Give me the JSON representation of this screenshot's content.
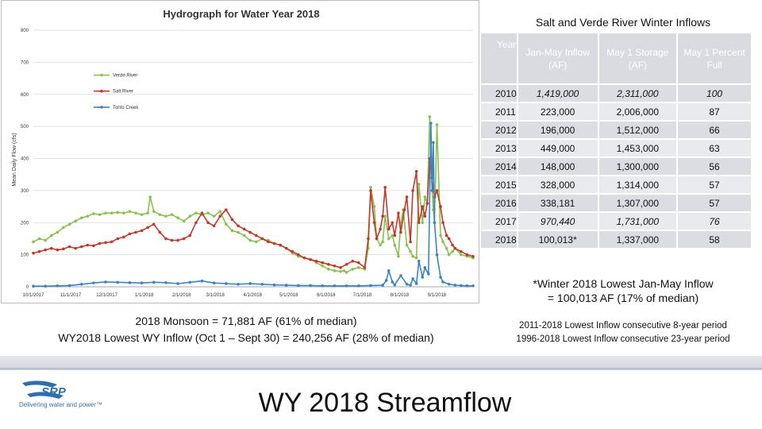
{
  "table": {
    "title": "Salt and Verde River Winter Inflows",
    "headers": [
      "Year",
      "Jan-May Inflow (AF)",
      "May 1 Storage (AF)",
      "May 1 Percent Full"
    ],
    "rows": [
      {
        "year": "2010",
        "inflow": "1,419,000",
        "storage": "2,311,000",
        "pct": "100",
        "italic": true
      },
      {
        "year": "2011",
        "inflow": "223,000",
        "storage": "2,006,000",
        "pct": "87",
        "italic": false
      },
      {
        "year": "2012",
        "inflow": "196,000",
        "storage": "1,512,000",
        "pct": "66",
        "italic": false
      },
      {
        "year": "2013",
        "inflow": "449,000",
        "storage": "1,453,000",
        "pct": "63",
        "italic": false
      },
      {
        "year": "2014",
        "inflow": "148,000",
        "storage": "1,300,000",
        "pct": "56",
        "italic": false
      },
      {
        "year": "2015",
        "inflow": "328,000",
        "storage": "1,314,000",
        "pct": "57",
        "italic": false
      },
      {
        "year": "2016",
        "inflow": "338,181",
        "storage": "1,307,000",
        "pct": "57",
        "italic": false
      },
      {
        "year": "2017",
        "inflow": "970,440",
        "storage": "1,731,000",
        "pct": "76",
        "italic": true
      },
      {
        "year": "2018",
        "inflow": "100,013*",
        "storage": "1,337,000",
        "pct": "58",
        "italic": false
      }
    ]
  },
  "notes": {
    "winter_line1": "*Winter 2018 Lowest Jan-May Inflow",
    "winter_line2": "= 100,013 AF (17% of median)",
    "consecutive_line1": "2011-2018 Lowest Inflow consecutive 8-year period",
    "consecutive_line2": "1996-2018 Lowest Inflow  consecutive 23-year period",
    "monsoon_line1": "2018 Monsoon = 71,881 AF (61% of median)",
    "monsoon_line2": "WY2018 Lowest WY Inflow (Oct 1 – Sept 30) = 240,256 AF (28% of median)"
  },
  "slide_title": "WY 2018 Streamflow",
  "logo": {
    "text": "SRP",
    "tagline": "Delivering water and power™"
  },
  "colors": {
    "verde": "#8cc04f",
    "salt": "#c0392b",
    "tonto": "#3b83c4",
    "grid": "#d9d9d9",
    "logo_blue": "#2f6fb0"
  },
  "chart_data": {
    "type": "line",
    "title": "Hydrograph for Water Year 2018",
    "xlabel": "",
    "ylabel": "Mean Daily Flow (cfs)",
    "ylim": [
      0,
      800
    ],
    "yticks": [
      0,
      100,
      200,
      300,
      400,
      500,
      600,
      700,
      800
    ],
    "xlim": [
      0,
      365
    ],
    "xticks": [
      {
        "day": 0,
        "label": "10/1/2017"
      },
      {
        "day": 31,
        "label": "11/1/2017"
      },
      {
        "day": 61,
        "label": "12/1/2017"
      },
      {
        "day": 92,
        "label": "1/1/2018"
      },
      {
        "day": 123,
        "label": "2/1/2018"
      },
      {
        "day": 151,
        "label": "3/1/2018"
      },
      {
        "day": 182,
        "label": "4/1/2018"
      },
      {
        "day": 212,
        "label": "5/1/2018"
      },
      {
        "day": 243,
        "label": "6/1/2018"
      },
      {
        "day": 273,
        "label": "7/1/2018"
      },
      {
        "day": 304,
        "label": "8/1/2018"
      },
      {
        "day": 335,
        "label": "9/1/2018"
      }
    ],
    "legend_position": "top-left",
    "series": [
      {
        "name": "Verde River",
        "color": "#8cc04f",
        "x": [
          0,
          5,
          10,
          15,
          20,
          25,
          30,
          35,
          40,
          45,
          50,
          55,
          60,
          65,
          70,
          75,
          80,
          85,
          90,
          95,
          97,
          100,
          105,
          110,
          115,
          120,
          125,
          130,
          135,
          140,
          145,
          150,
          155,
          160,
          165,
          170,
          175,
          180,
          185,
          190,
          195,
          200,
          205,
          210,
          215,
          220,
          225,
          230,
          235,
          240,
          245,
          250,
          255,
          258,
          260,
          265,
          270,
          275,
          278,
          280,
          283,
          285,
          288,
          290,
          292,
          295,
          298,
          300,
          303,
          305,
          307,
          310,
          313,
          315,
          318,
          320,
          323,
          325,
          327,
          329,
          330,
          331,
          332,
          333,
          335,
          338,
          340,
          343,
          345,
          348,
          350,
          355,
          360,
          365
        ],
        "y": [
          140,
          150,
          145,
          160,
          170,
          185,
          195,
          205,
          215,
          220,
          228,
          225,
          230,
          230,
          232,
          230,
          235,
          230,
          225,
          230,
          280,
          235,
          225,
          220,
          225,
          215,
          205,
          220,
          230,
          225,
          230,
          220,
          235,
          195,
          175,
          170,
          160,
          145,
          140,
          150,
          145,
          135,
          130,
          120,
          105,
          95,
          90,
          85,
          75,
          65,
          55,
          50,
          48,
          50,
          45,
          55,
          60,
          55,
          120,
          310,
          250,
          150,
          130,
          140,
          220,
          150,
          160,
          130,
          95,
          200,
          240,
          130,
          110,
          95,
          90,
          320,
          200,
          280,
          260,
          530,
          400,
          300,
          240,
          200,
          505,
          160,
          140,
          120,
          100,
          110,
          120,
          100,
          95,
          90
        ]
      },
      {
        "name": "Salt River",
        "color": "#c0392b",
        "x": [
          0,
          5,
          10,
          15,
          20,
          25,
          30,
          35,
          40,
          45,
          50,
          55,
          60,
          65,
          70,
          75,
          80,
          85,
          90,
          95,
          100,
          105,
          110,
          115,
          120,
          125,
          130,
          135,
          140,
          145,
          150,
          155,
          160,
          165,
          170,
          175,
          180,
          185,
          190,
          195,
          200,
          205,
          210,
          215,
          220,
          225,
          230,
          235,
          240,
          245,
          250,
          255,
          260,
          265,
          270,
          275,
          278,
          280,
          283,
          285,
          288,
          290,
          292,
          295,
          298,
          300,
          303,
          305,
          308,
          310,
          313,
          315,
          318,
          320,
          323,
          325,
          327,
          329,
          330,
          331,
          332,
          333,
          335,
          338,
          340,
          343,
          345,
          348,
          350,
          355,
          360,
          365
        ],
        "y": [
          105,
          110,
          115,
          120,
          115,
          118,
          125,
          120,
          125,
          130,
          128,
          135,
          138,
          140,
          150,
          155,
          165,
          170,
          175,
          185,
          195,
          170,
          150,
          145,
          145,
          150,
          160,
          200,
          230,
          200,
          190,
          220,
          240,
          210,
          190,
          180,
          170,
          160,
          150,
          140,
          135,
          130,
          120,
          110,
          100,
          90,
          85,
          80,
          75,
          70,
          65,
          60,
          70,
          80,
          75,
          60,
          150,
          300,
          200,
          150,
          180,
          220,
          310,
          180,
          200,
          160,
          230,
          170,
          240,
          280,
          140,
          300,
          360,
          200,
          250,
          220,
          260,
          400,
          380,
          340,
          300,
          280,
          300,
          250,
          200,
          160,
          150,
          130,
          120,
          110,
          100,
          95
        ]
      },
      {
        "name": "Tonto Creek",
        "color": "#3b83c4",
        "x": [
          0,
          10,
          20,
          30,
          40,
          50,
          60,
          70,
          80,
          90,
          100,
          110,
          120,
          130,
          140,
          150,
          160,
          170,
          180,
          190,
          200,
          210,
          220,
          230,
          240,
          250,
          260,
          270,
          280,
          290,
          293,
          295,
          298,
          300,
          305,
          310,
          313,
          315,
          318,
          320,
          323,
          325,
          328,
          330,
          331,
          332,
          333,
          335,
          338,
          340,
          345,
          350,
          355,
          360,
          365
        ],
        "y": [
          2,
          2,
          3,
          4,
          8,
          12,
          15,
          14,
          13,
          12,
          14,
          13,
          10,
          14,
          18,
          12,
          10,
          8,
          10,
          8,
          6,
          5,
          4,
          4,
          3,
          3,
          3,
          3,
          4,
          5,
          20,
          50,
          15,
          6,
          35,
          8,
          5,
          25,
          10,
          80,
          30,
          60,
          40,
          510,
          300,
          450,
          200,
          100,
          30,
          15,
          8,
          5,
          4,
          3,
          3
        ]
      }
    ]
  }
}
